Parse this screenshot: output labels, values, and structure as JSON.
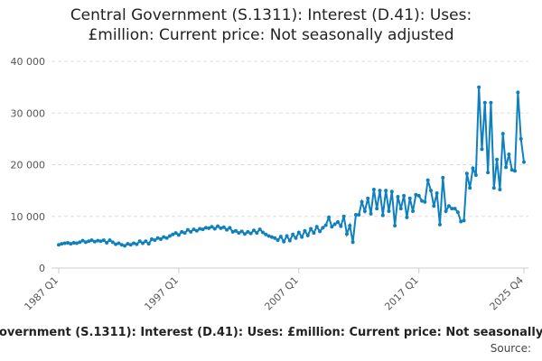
{
  "chart_data": {
    "type": "line",
    "title": "Central Government (S.1311): Interest (D.41): Uses: £million: Current price: Not seasonally adjusted",
    "source": "Source:",
    "categories": [
      "1987 Q1",
      null,
      null,
      null,
      null,
      null,
      null,
      null,
      null,
      null,
      null,
      null,
      null,
      null,
      null,
      null,
      null,
      null,
      null,
      null,
      null,
      null,
      null,
      null,
      null,
      null,
      null,
      null,
      null,
      null,
      null,
      null,
      null,
      null,
      null,
      null,
      null,
      null,
      null,
      null,
      "1997 Q1",
      null,
      null,
      null,
      null,
      null,
      null,
      null,
      null,
      null,
      null,
      null,
      null,
      null,
      null,
      null,
      null,
      null,
      null,
      null,
      null,
      null,
      null,
      null,
      null,
      null,
      null,
      null,
      null,
      null,
      null,
      null,
      null,
      null,
      null,
      null,
      null,
      null,
      null,
      null,
      "2007 Q1",
      null,
      null,
      null,
      null,
      null,
      null,
      null,
      null,
      null,
      null,
      null,
      null,
      null,
      null,
      null,
      null,
      null,
      null,
      null,
      null,
      null,
      null,
      null,
      null,
      null,
      null,
      null,
      null,
      null,
      null,
      null,
      null,
      null,
      null,
      null,
      null,
      null,
      null,
      null,
      "2017 Q1",
      null,
      null,
      null,
      null,
      null,
      null,
      null,
      null,
      null,
      null,
      null,
      null,
      null,
      null,
      null,
      null,
      null,
      null,
      null,
      null,
      null,
      null,
      null,
      null,
      null,
      null,
      null,
      null,
      null,
      null,
      null,
      null,
      null,
      null,
      "2025 Q4"
    ],
    "series": [
      {
        "name": "Central Government (S.1311): Interest (D.41)",
        "color": "#0f80be",
        "values": [
          4500,
          4700,
          4800,
          4900,
          4700,
          4900,
          4800,
          5000,
          5300,
          5000,
          5200,
          5400,
          5100,
          5300,
          5200,
          5400,
          4900,
          5400,
          5000,
          4600,
          4800,
          4500,
          4300,
          4700,
          4500,
          4800,
          4600,
          5200,
          4800,
          5200,
          4700,
          5600,
          5400,
          5800,
          5600,
          6000,
          5800,
          6200,
          6500,
          6800,
          6400,
          7000,
          6800,
          7400,
          7000,
          7500,
          7200,
          7600,
          7500,
          7800,
          7700,
          8000,
          7600,
          8100,
          7700,
          7900,
          7400,
          7800,
          7000,
          7200,
          6800,
          7100,
          6600,
          7000,
          6700,
          7300,
          6800,
          7500,
          6900,
          6500,
          6200,
          6000,
          5800,
          5400,
          6100,
          5100,
          6200,
          5300,
          6500,
          5800,
          6900,
          6000,
          7200,
          6300,
          7600,
          6800,
          8000,
          7100,
          7800,
          8300,
          9800,
          8000,
          8500,
          8900,
          8100,
          10000,
          6600,
          8200,
          5000,
          10300,
          10300,
          12800,
          11000,
          13500,
          10500,
          15200,
          11500,
          15000,
          10200,
          15000,
          11000,
          14800,
          8200,
          13800,
          11500,
          14000,
          9800,
          13500,
          11000,
          14200,
          14000,
          13000,
          12800,
          17000,
          15000,
          12000,
          14500,
          8400,
          17500,
          11000,
          12000,
          11500,
          11500,
          10800,
          9000,
          9200,
          18300,
          15500,
          19300,
          18000,
          35000,
          23000,
          32000,
          18500,
          32000,
          15500,
          21000,
          15200,
          26000,
          19500,
          22000,
          19000,
          18800,
          34000,
          25000,
          20500
        ]
      }
    ],
    "ylim": [
      0,
      40000
    ],
    "yticks": [
      0,
      {
        "value": 10000,
        "label": "10 000"
      },
      {
        "value": 20000,
        "label": "20 000"
      },
      {
        "value": 30000,
        "label": "30 000"
      },
      {
        "value": 40000,
        "label": "40 000"
      }
    ],
    "grid": true
  }
}
